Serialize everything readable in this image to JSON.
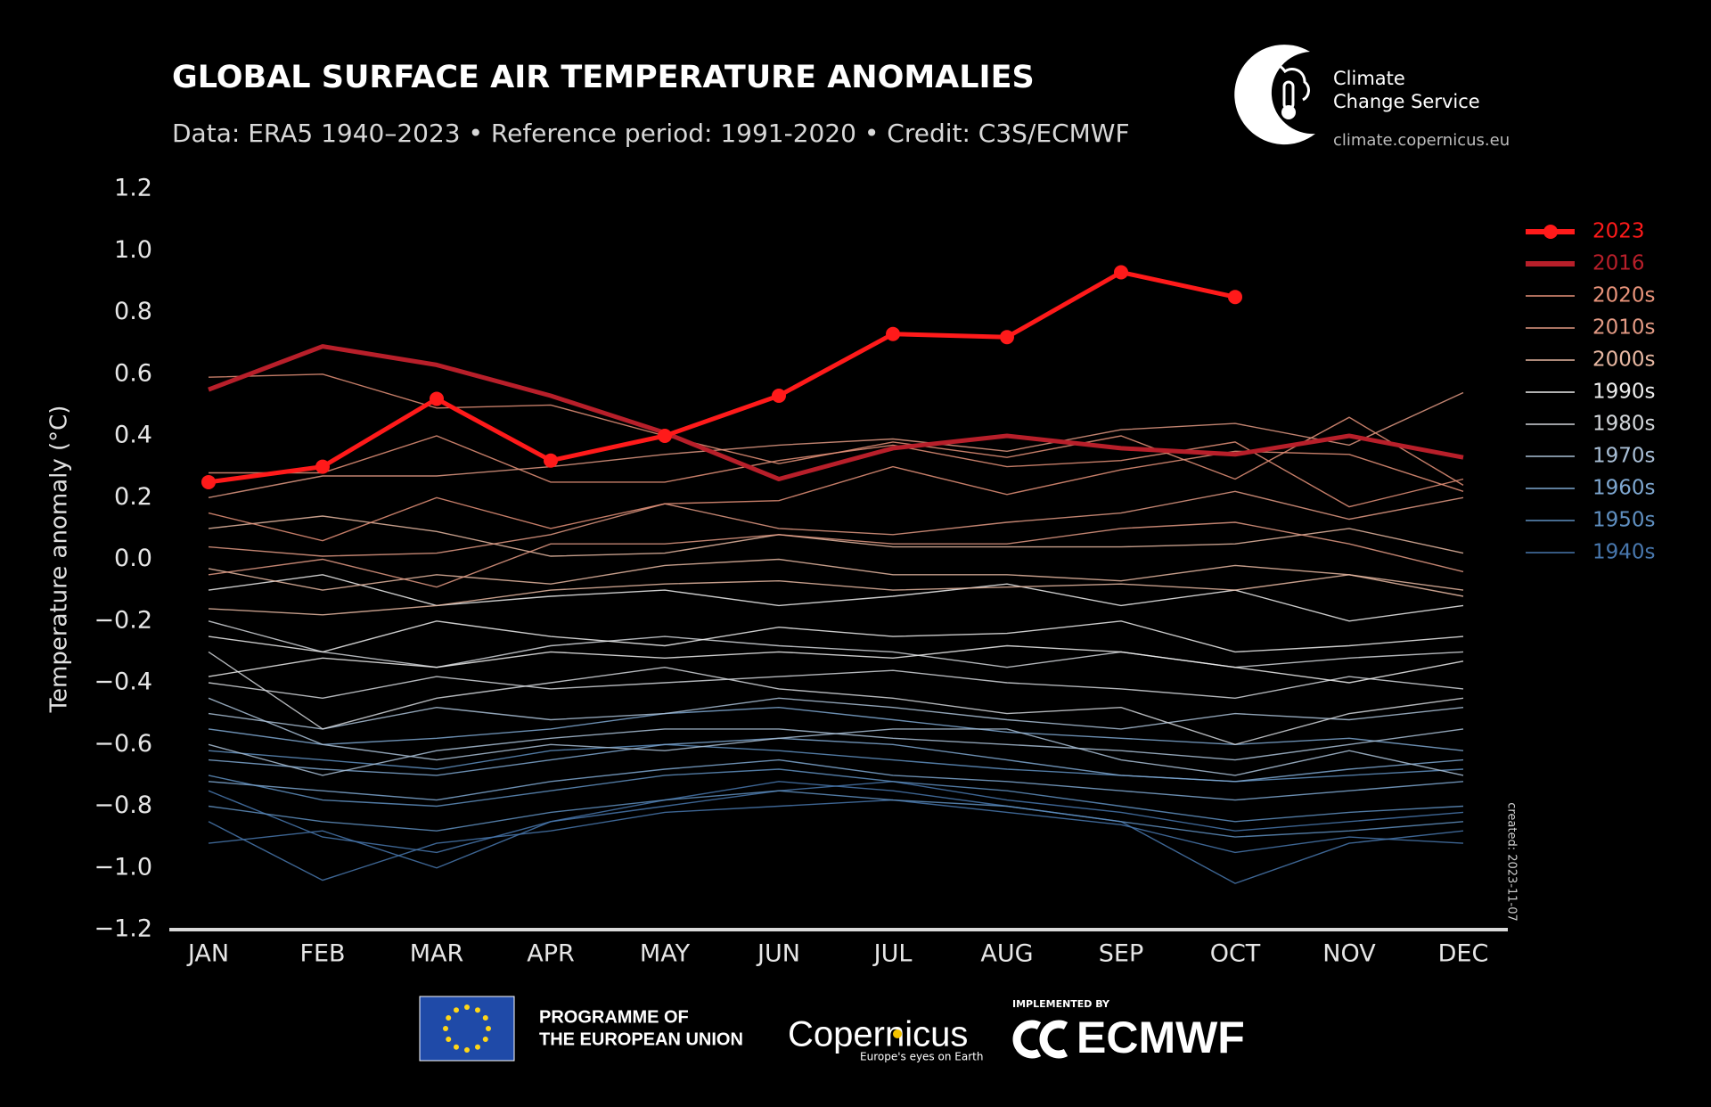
{
  "chart_data": {
    "type": "line",
    "title": "GLOBAL SURFACE AIR TEMPERATURE ANOMALIES",
    "subtitle": "Data: ERA5 1940–2023 • Reference period: 1991-2020 • Credit: C3S/ECMWF",
    "y_label": "Temperature anomaly (°C)",
    "categories": [
      "JAN",
      "FEB",
      "MAR",
      "APR",
      "MAY",
      "JUN",
      "JUL",
      "AUG",
      "SEP",
      "OCT",
      "NOV",
      "DEC"
    ],
    "ylim": [
      -1.2,
      1.2
    ],
    "yticks": [
      1.2,
      {
        "value": 1,
        "label": "1.0"
      },
      0.8,
      0.6,
      0.4,
      0.2,
      {
        "value": 0,
        "label": "0.0"
      },
      {
        "value": -0.2,
        "label": "−0.2"
      },
      {
        "value": -0.4,
        "label": "−0.4"
      },
      {
        "value": -0.6,
        "label": "−0.6"
      },
      {
        "value": -0.8,
        "label": "−0.8"
      },
      {
        "value": -1,
        "label": "−1.0"
      },
      {
        "value": -1.2,
        "label": "−1.2"
      }
    ],
    "grid": false,
    "legend": "right",
    "annotation": "created: 2023-11-07",
    "series": [
      {
        "name": "2023",
        "color": "#ff1a1a",
        "markers": true,
        "values": [
          0.25,
          0.3,
          0.52,
          0.32,
          0.4,
          0.53,
          0.73,
          0.72,
          0.93,
          0.85,
          null,
          null
        ]
      },
      {
        "name": "2016",
        "color": "#b81f2a",
        "values": [
          0.55,
          0.69,
          0.63,
          0.53,
          0.41,
          0.26,
          0.36,
          0.4,
          0.36,
          0.34,
          0.4,
          0.33
        ]
      },
      {
        "name": "2020s",
        "color": "#e8937a",
        "lines": [
          [
            0.59,
            0.6,
            0.49,
            0.5,
            0.4,
            0.31,
            0.38,
            0.33,
            0.4,
            0.26,
            0.46,
            0.24
          ],
          [
            0.15,
            0.06,
            0.2,
            0.1,
            0.18,
            0.19,
            0.3,
            0.21,
            0.29,
            0.35,
            0.34,
            0.22
          ],
          [
            0.28,
            0.28,
            0.4,
            0.25,
            0.25,
            0.32,
            0.37,
            0.3,
            0.32,
            0.38,
            0.17,
            0.26
          ]
        ]
      },
      {
        "name": "2010s",
        "color": "#e39a84",
        "lines": [
          [
            0.2,
            0.27,
            0.27,
            0.3,
            0.34,
            0.37,
            0.39,
            0.35,
            0.42,
            0.44,
            0.37,
            0.54
          ],
          [
            0.04,
            0.01,
            0.02,
            0.08,
            0.18,
            0.1,
            0.08,
            0.12,
            0.15,
            0.22,
            0.13,
            0.2
          ],
          [
            -0.05,
            0.0,
            -0.09,
            0.05,
            0.05,
            0.08,
            0.05,
            0.05,
            0.1,
            0.12,
            0.05,
            -0.04
          ]
        ]
      },
      {
        "name": "2000s",
        "color": "#e8b8a2",
        "lines": [
          [
            0.1,
            0.14,
            0.09,
            0.01,
            0.02,
            0.08,
            0.04,
            0.04,
            0.04,
            0.05,
            0.1,
            0.02
          ],
          [
            -0.03,
            -0.1,
            -0.05,
            -0.08,
            -0.02,
            0.0,
            -0.05,
            -0.05,
            -0.07,
            -0.02,
            -0.05,
            -0.1
          ],
          [
            -0.16,
            -0.18,
            -0.15,
            -0.1,
            -0.08,
            -0.07,
            -0.1,
            -0.09,
            -0.08,
            -0.1,
            -0.05,
            -0.12
          ]
        ]
      },
      {
        "name": "1990s",
        "color": "#eeeeee",
        "lines": [
          [
            -0.1,
            -0.05,
            -0.15,
            -0.12,
            -0.1,
            -0.15,
            -0.12,
            -0.08,
            -0.15,
            -0.1,
            -0.2,
            -0.15
          ],
          [
            -0.25,
            -0.3,
            -0.2,
            -0.25,
            -0.28,
            -0.22,
            -0.25,
            -0.24,
            -0.2,
            -0.3,
            -0.28,
            -0.25
          ],
          [
            -0.38,
            -0.32,
            -0.35,
            -0.3,
            -0.32,
            -0.3,
            -0.32,
            -0.28,
            -0.3,
            -0.35,
            -0.4,
            -0.33
          ]
        ]
      },
      {
        "name": "1980s",
        "color": "#d2d6da",
        "lines": [
          [
            -0.2,
            -0.3,
            -0.35,
            -0.28,
            -0.25,
            -0.28,
            -0.3,
            -0.35,
            -0.3,
            -0.35,
            -0.32,
            -0.3
          ],
          [
            -0.4,
            -0.45,
            -0.38,
            -0.42,
            -0.4,
            -0.38,
            -0.36,
            -0.4,
            -0.42,
            -0.45,
            -0.38,
            -0.42
          ],
          [
            -0.3,
            -0.55,
            -0.45,
            -0.4,
            -0.35,
            -0.42,
            -0.45,
            -0.5,
            -0.48,
            -0.6,
            -0.5,
            -0.45
          ]
        ]
      },
      {
        "name": "1970s",
        "color": "#a9bfd6",
        "lines": [
          [
            -0.5,
            -0.55,
            -0.48,
            -0.52,
            -0.5,
            -0.45,
            -0.48,
            -0.52,
            -0.55,
            -0.5,
            -0.52,
            -0.48
          ],
          [
            -0.6,
            -0.7,
            -0.62,
            -0.58,
            -0.55,
            -0.55,
            -0.58,
            -0.6,
            -0.62,
            -0.65,
            -0.6,
            -0.55
          ],
          [
            -0.45,
            -0.6,
            -0.65,
            -0.6,
            -0.62,
            -0.58,
            -0.55,
            -0.55,
            -0.65,
            -0.7,
            -0.62,
            -0.7
          ]
        ]
      },
      {
        "name": "1960s",
        "color": "#7ea7d0",
        "lines": [
          [
            -0.55,
            -0.6,
            -0.58,
            -0.55,
            -0.5,
            -0.48,
            -0.52,
            -0.56,
            -0.58,
            -0.6,
            -0.58,
            -0.62
          ],
          [
            -0.65,
            -0.68,
            -0.7,
            -0.65,
            -0.6,
            -0.58,
            -0.6,
            -0.65,
            -0.7,
            -0.72,
            -0.68,
            -0.65
          ],
          [
            -0.72,
            -0.75,
            -0.78,
            -0.72,
            -0.68,
            -0.65,
            -0.7,
            -0.72,
            -0.75,
            -0.78,
            -0.75,
            -0.72
          ]
        ]
      },
      {
        "name": "1950s",
        "color": "#5f8fc0",
        "lines": [
          [
            -0.7,
            -0.78,
            -0.8,
            -0.75,
            -0.7,
            -0.68,
            -0.72,
            -0.75,
            -0.8,
            -0.85,
            -0.82,
            -0.8
          ],
          [
            -0.62,
            -0.65,
            -0.68,
            -0.62,
            -0.6,
            -0.62,
            -0.65,
            -0.68,
            -0.7,
            -0.72,
            -0.7,
            -0.68
          ],
          [
            -0.8,
            -0.85,
            -0.88,
            -0.82,
            -0.78,
            -0.75,
            -0.78,
            -0.8,
            -0.85,
            -0.9,
            -0.88,
            -0.85
          ]
        ]
      },
      {
        "name": "1940s",
        "color": "#4877ad",
        "lines": [
          [
            -0.75,
            -0.9,
            -0.95,
            -0.85,
            -0.8,
            -0.75,
            -0.72,
            -0.78,
            -0.82,
            -0.88,
            -0.85,
            -0.82
          ],
          [
            -0.85,
            -1.04,
            -0.92,
            -0.88,
            -0.82,
            -0.8,
            -0.78,
            -0.82,
            -0.86,
            -0.95,
            -0.9,
            -0.92
          ],
          [
            -0.92,
            -0.88,
            -1.0,
            -0.85,
            -0.78,
            -0.72,
            -0.75,
            -0.8,
            -0.85,
            -1.05,
            -0.92,
            -0.88
          ]
        ]
      }
    ]
  },
  "logos": {
    "service_line1": "Climate",
    "service_line2": "Change Service",
    "service_url": "climate.copernicus.eu",
    "eu_line1": "PROGRAMME OF",
    "eu_line2": "THE EUROPEAN UNION",
    "copernicus": "Copernicus",
    "copernicus_tagline": "Europe's eyes on Earth",
    "implemented": "IMPLEMENTED BY",
    "ecmwf": "ECMWF"
  }
}
